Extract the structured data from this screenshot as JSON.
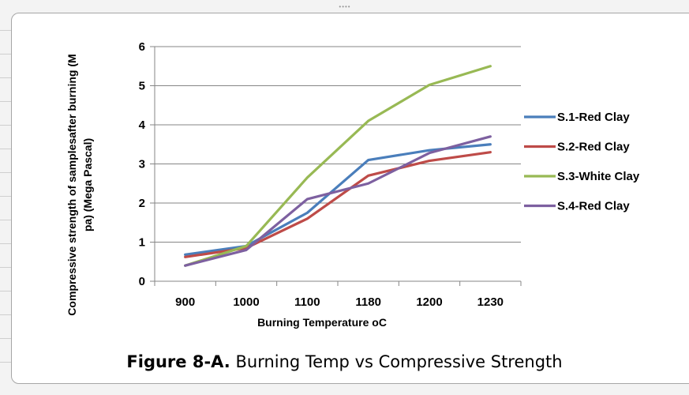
{
  "chart_data": {
    "type": "line",
    "categories": [
      "900",
      "1000",
      "1100",
      "1180",
      "1200",
      "1230"
    ],
    "series": [
      {
        "name": "S.1-Red Clay",
        "values": [
          0.68,
          0.9,
          1.75,
          3.1,
          3.35,
          3.5
        ],
        "color": "#4a7ebb"
      },
      {
        "name": "S.2-Red Clay",
        "values": [
          0.62,
          0.85,
          1.6,
          2.7,
          3.08,
          3.3
        ],
        "color": "#be4b48"
      },
      {
        "name": "S.3-White Clay",
        "values": [
          0.4,
          0.9,
          2.65,
          4.1,
          5.02,
          5.5
        ],
        "color": "#98b954"
      },
      {
        "name": "S.4-Red Clay",
        "values": [
          0.4,
          0.8,
          2.1,
          2.5,
          3.28,
          3.7
        ],
        "color": "#7d60a0"
      }
    ],
    "xlabel": "Burning Temperature  oC",
    "ylabel_line1": "Compressive strength of samplesafter burning (M",
    "ylabel_line2": "pa) (Mega Pascal)",
    "ylim": [
      0,
      6
    ],
    "yticks": [
      "0",
      "1",
      "2",
      "3",
      "4",
      "5",
      "6"
    ],
    "grid": true,
    "legend_position": "right"
  },
  "caption": {
    "figure_label": "Figure 8-A.",
    "text": "Burning Temp vs Compressive  Strength"
  }
}
